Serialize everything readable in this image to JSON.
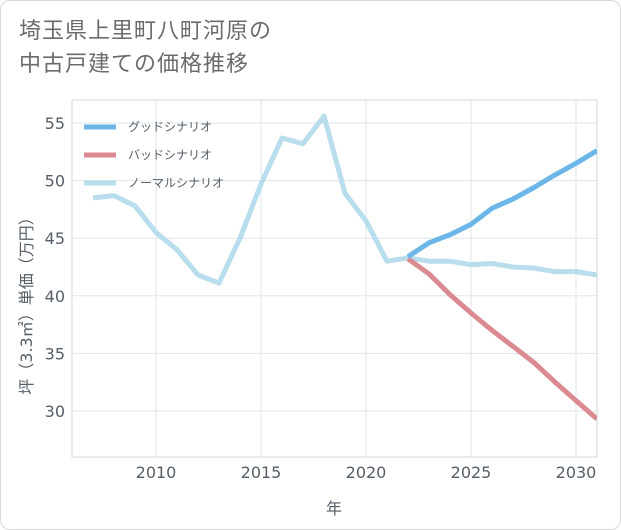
{
  "title_lines": [
    "埼玉県上里町八町河原の",
    "中古戸建ての価格推移"
  ],
  "chart_data": {
    "type": "line",
    "title": "埼玉県上里町八町河原の中古戸建ての価格推移",
    "xlabel": "年",
    "ylabel": "坪（3.3㎡）単価（万円）",
    "xlim": [
      2006,
      2031
    ],
    "ylim": [
      26,
      57
    ],
    "xticks": [
      2010,
      2015,
      2020,
      2025,
      2030
    ],
    "yticks": [
      30,
      35,
      40,
      45,
      50,
      55
    ],
    "grid": true,
    "legend_position": "top-left",
    "series": [
      {
        "name": "グッドシナリオ",
        "color": "#6cb6e8",
        "x": [
          2022,
          2023,
          2024,
          2025,
          2026,
          2027,
          2028,
          2029,
          2030,
          2031
        ],
        "y": [
          43.4,
          44.6,
          45.3,
          46.2,
          47.6,
          48.4,
          49.4,
          50.5,
          51.5,
          52.6
        ]
      },
      {
        "name": "バッドシナリオ",
        "color": "#dc8a92",
        "x": [
          2022,
          2023,
          2024,
          2025,
          2026,
          2027,
          2028,
          2029,
          2030,
          2031
        ],
        "y": [
          43.2,
          41.9,
          40.1,
          38.5,
          37.0,
          35.6,
          34.2,
          32.5,
          30.9,
          29.3
        ]
      },
      {
        "name": "ノーマルシナリオ",
        "color": "#b8dded",
        "x": [
          2007,
          2008,
          2009,
          2010,
          2011,
          2012,
          2013,
          2014,
          2015,
          2016,
          2017,
          2018,
          2019,
          2020,
          2021,
          2022,
          2023,
          2024,
          2025,
          2026,
          2027,
          2028,
          2029,
          2030,
          2031
        ],
        "y": [
          48.5,
          48.7,
          47.8,
          45.5,
          44.0,
          41.8,
          41.1,
          45.0,
          49.7,
          53.7,
          53.2,
          55.6,
          48.9,
          46.5,
          43.0,
          43.3,
          43.0,
          43.0,
          42.7,
          42.8,
          42.5,
          42.4,
          42.1,
          42.1,
          41.8
        ]
      }
    ]
  }
}
